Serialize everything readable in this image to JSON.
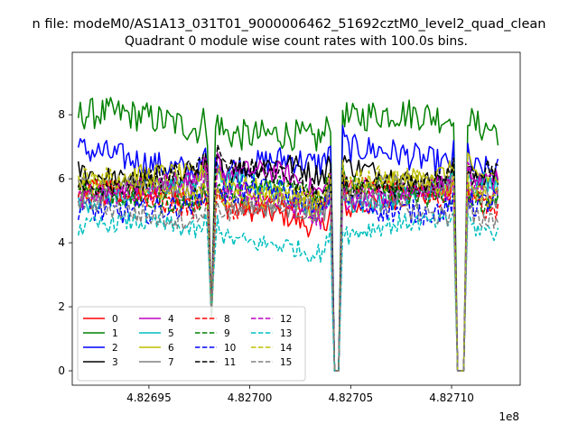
{
  "chart_data": {
    "type": "line",
    "suptitle": "n file: modeM0/AS1A13_031T01_9000006462_51692cztM0_level2_quad_clean",
    "title": "Quadrant 0 module wise count rates with 100.0s bins.",
    "xlabel": "",
    "ylabel": "",
    "x_offset_label": "1e8",
    "xlim": [
      4.826912,
      4.827134
    ],
    "ylim": [
      -0.45,
      9.95
    ],
    "xticks": [
      4.82695,
      4.827,
      4.82705,
      4.8271
    ],
    "xtick_labels": [
      "4.82695",
      "4.82700",
      "4.82705",
      "4.82710"
    ],
    "yticks": [
      0,
      2,
      4,
      6,
      8
    ],
    "ytick_labels": [
      "0",
      "2",
      "4",
      "6",
      "8"
    ],
    "legend_position": "lower-left",
    "x_start": 4.826915,
    "x_end": 4.827123,
    "x_step": 1e-06,
    "gaps": [
      {
        "start": 4.8269806,
        "end": 4.8269818,
        "drop_to": 1.7
      },
      {
        "start": 4.8270415,
        "end": 4.8270445,
        "drop_to": 0.0
      },
      {
        "start": 4.8271025,
        "end": 4.8271065,
        "drop_to": 0.0
      }
    ],
    "series": [
      {
        "name": "0",
        "color": "#ff0000",
        "dash": "solid",
        "base": 5.2,
        "jitter": 0.35
      },
      {
        "name": "1",
        "color": "#008000",
        "dash": "solid",
        "base": 7.7,
        "jitter": 0.5
      },
      {
        "name": "2",
        "color": "#0000ff",
        "dash": "solid",
        "base": 6.6,
        "jitter": 0.45
      },
      {
        "name": "3",
        "color": "#000000",
        "dash": "solid",
        "base": 6.2,
        "jitter": 0.35
      },
      {
        "name": "4",
        "color": "#bf00bf",
        "dash": "solid",
        "base": 5.9,
        "jitter": 0.35
      },
      {
        "name": "5",
        "color": "#00bfbf",
        "dash": "solid",
        "base": 5.6,
        "jitter": 0.35
      },
      {
        "name": "6",
        "color": "#bfbf00",
        "dash": "solid",
        "base": 5.8,
        "jitter": 0.35
      },
      {
        "name": "7",
        "color": "#808080",
        "dash": "solid",
        "base": 5.5,
        "jitter": 0.35
      },
      {
        "name": "8",
        "color": "#ff0000",
        "dash": "dashed",
        "base": 5.4,
        "jitter": 0.35
      },
      {
        "name": "9",
        "color": "#008000",
        "dash": "dashed",
        "base": 5.6,
        "jitter": 0.35
      },
      {
        "name": "10",
        "color": "#0000ff",
        "dash": "dashed",
        "base": 5.3,
        "jitter": 0.4
      },
      {
        "name": "11",
        "color": "#000000",
        "dash": "dashed",
        "base": 6.0,
        "jitter": 0.35
      },
      {
        "name": "12",
        "color": "#bf00bf",
        "dash": "dashed",
        "base": 5.5,
        "jitter": 0.35
      },
      {
        "name": "13",
        "color": "#00bfbf",
        "dash": "dashed",
        "base": 4.3,
        "jitter": 0.3
      },
      {
        "name": "14",
        "color": "#bfbf00",
        "dash": "dashed",
        "base": 5.7,
        "jitter": 0.35
      },
      {
        "name": "15",
        "color": "#808080",
        "dash": "dashed",
        "base": 5.1,
        "jitter": 0.35
      }
    ]
  }
}
